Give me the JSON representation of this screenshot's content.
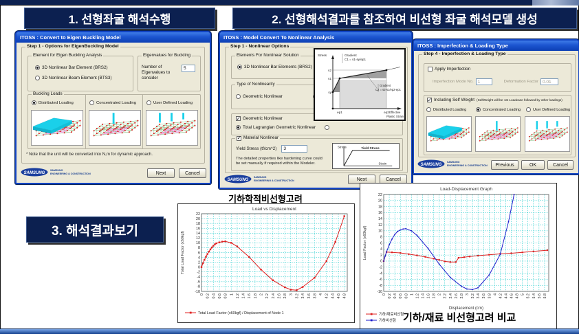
{
  "page": {
    "section1_title": "1. 선형좌굴 해석수행",
    "section2_title": "2. 선형해석결과를 참조하여 비선형 좌굴 해석모델 생성",
    "section3_title": "3. 해석결과보기"
  },
  "logo": {
    "brand": "SAMSUNG",
    "line1": "SAMSUNG",
    "line2": "ENGINEERING & CONSTRUCTION"
  },
  "colors": {
    "title_box_bg": "#0c2050",
    "dialog_titlebar": "#1c55d0",
    "dialog_body": "#ece9d8",
    "grid_cyan": "#00c4c4",
    "truss_cyan": "#1ad0ea"
  },
  "dialog1": {
    "titlebar": "ITOSS : Convert to Eigen Buckling Model",
    "step_label": "Step 1 - Options for EigenBuckling Model",
    "element_group": {
      "label": "Element for Eigen Buckling Analysis",
      "options": [
        {
          "label": "3D Nonlinear Bar Element (BRS2)",
          "selected": true
        },
        {
          "label": "3D Nonlinear Beam Element (BTS3)",
          "selected": false
        }
      ]
    },
    "eigen_group": {
      "label": "Eigenvalues for Buckling",
      "field_label": "Number of Eigenvalues to consider",
      "value": "5"
    },
    "buckling_group": {
      "label": "Buckling Loads",
      "options": [
        {
          "label": "Distributed Loading",
          "selected": true
        },
        {
          "label": "Concentrated Loading",
          "selected": false
        },
        {
          "label": "User Defined Loading",
          "selected": false
        }
      ]
    },
    "note": "* Note that the unit will be converted into N,m for dynamic approach.",
    "next": "Next",
    "cancel": "Cancel"
  },
  "dialog2": {
    "titlebar": "ITOSS : Model Convert To Nonlinear Analysis",
    "step_label": "Step 1 - Nonlinear Options",
    "elements_label": "Elements For Nonlinear Solution",
    "element_option": "3D Nonlinear Bar Elements (BRS2)",
    "type_label": "Type of Nonlinearity",
    "type_options": [
      "Geometric Nonlinear",
      "Material Nonlinear"
    ],
    "geometric_check": "Geometric Nonlinear",
    "lagrangian_radio": "Total Lagrangian Geometric Nonlinear",
    "material_check": "Material Nonlinear",
    "yield_label": "Yield Stress (tf/cm^2)",
    "yield_value": "3",
    "material_note": "The detailed properties like hardening curve could be set manually if required within the Modeler.",
    "yield_diagram": {
      "stress": "Stress",
      "yield": "Yield Stress",
      "strain": "Strain"
    },
    "plastic_diagram": {
      "stress": "Stress",
      "gradient1_line1": "Gradient",
      "gradient1_line2": "C1 = s1-sy/ep1",
      "gradient2_line1": "Gradient",
      "gradient2_line2": "C2 = s2-s1/ep2-ep1",
      "s2": "s2",
      "s1": "s1",
      "sy": "sy",
      "ep1": "ep1",
      "ep2": "ep2",
      "xlabel_line1": "Effective",
      "xlabel_line2": "Plastic Strain"
    },
    "next": "Next",
    "cancel": "Cancel"
  },
  "dialog3": {
    "titlebar": "ITOSS : Imperfection & Loading Type",
    "step_label": "Step 4 - Imperfection & Loading Type",
    "imperfection_check": "Apply Imperfection",
    "mode_label": "Imperfection Mode No.",
    "mode_value": "1",
    "factor_label": "Deformation Factor",
    "factor_value": "0.01",
    "selfweight_check": "Including Self Weight",
    "selfweight_hint": "(SelfWeight will be 1st Loadcase followed by other loadings)",
    "loading_options": [
      {
        "label": "Distributed Loading",
        "selected": false
      },
      {
        "label": "Concentrated Loading",
        "selected": true
      },
      {
        "label": "User Defined Loading",
        "selected": false
      }
    ],
    "previous": "Previous",
    "ok": "OK",
    "cancel": "Cancel"
  },
  "chart_data": [
    {
      "type": "line",
      "caption": "기하학적비선형고려",
      "title": "Load vs Displacement",
      "xlabel": "",
      "ylabel": "Total Load Factor (x60kgf)",
      "xlim": [
        0,
        4.9
      ],
      "ylim": [
        -10,
        22
      ],
      "grid": true,
      "legend_position": "bottom-left",
      "x_ticks": [
        "0",
        "0.2",
        "0.4",
        "0.6",
        "0.8",
        "1",
        "1.2",
        "1.4",
        "1.6",
        "1.8",
        "2",
        "2.2",
        "2.4",
        "2.6",
        "2.8",
        "3",
        "3.2",
        "3.4",
        "3.6",
        "3.8",
        "4",
        "4.2",
        "4.4",
        "4.6",
        "4.8"
      ],
      "y_ticks": [
        "22",
        "20",
        "18",
        "16",
        "14",
        "12",
        "10",
        "8",
        "6",
        "4",
        "2",
        "0",
        "-2",
        "-4",
        "-6",
        "-8",
        "-10"
      ],
      "series": [
        {
          "name": "Total Load Factor (x60kgf) / Displacement of Node 1",
          "color": "#e02020",
          "marker": "square",
          "marker_size": 2.4,
          "x": [
            0,
            0.05,
            0.1,
            0.15,
            0.2,
            0.25,
            0.3,
            0.35,
            0.4,
            0.45,
            0.5,
            0.6,
            0.7,
            0.8,
            1.0,
            1.2,
            1.6,
            2.0,
            2.4,
            2.8,
            3.0,
            3.2,
            3.4,
            3.8,
            4.2,
            4.5,
            4.8
          ],
          "y": [
            0,
            1.6,
            3.0,
            4.3,
            5.4,
            6.4,
            7.3,
            8.1,
            8.8,
            9.4,
            9.8,
            10.2,
            10.5,
            10.6,
            10.0,
            8.5,
            4.2,
            -1.0,
            -5.4,
            -8.3,
            -9.3,
            -9.5,
            -8.2,
            -4.4,
            2.5,
            10.4,
            21.0
          ]
        }
      ]
    },
    {
      "type": "line",
      "title": "Load-Displacement Graph",
      "xlabel": "Displacement (cm)",
      "ylabel": "Load Factor (x60kgf)",
      "xlim": [
        0,
        5.95
      ],
      "ylim": [
        -10,
        22
      ],
      "grid": true,
      "legend_position": "bottom-left",
      "overlay_text": "기하/재료 비선형고려 비교",
      "x_ticks": [
        "0",
        "0.2",
        "0.4",
        "0.6",
        "0.8",
        "1",
        "1.2",
        "1.4",
        "1.6",
        "1.8",
        "2",
        "2.2",
        "2.4",
        "2.6",
        "2.8",
        "3",
        "3.2",
        "3.4",
        "3.6",
        "3.8",
        "4",
        "4.2",
        "4.4",
        "4.6",
        "4.8",
        "5",
        "5.2",
        "5.4",
        "5.6",
        "5.8"
      ],
      "y_ticks": [
        "22",
        "20",
        "18",
        "16",
        "14",
        "12",
        "10",
        "8",
        "6",
        "4",
        "2",
        "0",
        "-2",
        "-4",
        "-6",
        "-8",
        "-10"
      ],
      "series": [
        {
          "name": "기하/재료비선형",
          "color": "#dd2222",
          "marker": "square",
          "marker_size": 2.2,
          "x": [
            0,
            0.1,
            0.3,
            0.6,
            0.9,
            1.2,
            1.5,
            1.8,
            2.0,
            2.2,
            2.4,
            2.6,
            2.7,
            2.9,
            3.1,
            3.4,
            3.8,
            4.2,
            4.6,
            5.0,
            5.4,
            5.9
          ],
          "y": [
            0,
            3.0,
            2.9,
            2.7,
            2.3,
            1.9,
            1.4,
            0.8,
            0.4,
            -0.1,
            -0.3,
            -0.3,
            1.1,
            1.3,
            1.5,
            1.8,
            2.1,
            2.4,
            2.6,
            2.9,
            3.2,
            3.6
          ]
        },
        {
          "name": "기하비선형",
          "color": "#1a1acc",
          "marker": "square",
          "marker_size": 1.6,
          "x": [
            0,
            0.05,
            0.1,
            0.2,
            0.3,
            0.4,
            0.5,
            0.6,
            0.7,
            0.8,
            1.0,
            1.2,
            1.6,
            2.0,
            2.4,
            2.8,
            3.0,
            3.2,
            3.4,
            3.8,
            4.2,
            4.5,
            4.7
          ],
          "y": [
            0,
            1.6,
            3.0,
            5.4,
            7.3,
            8.8,
            9.8,
            10.3,
            10.6,
            10.7,
            10.0,
            8.5,
            4.2,
            -1.0,
            -5.4,
            -8.3,
            -9.2,
            -9.4,
            -8.8,
            -4.6,
            2.2,
            13.0,
            22.0
          ]
        }
      ]
    }
  ]
}
